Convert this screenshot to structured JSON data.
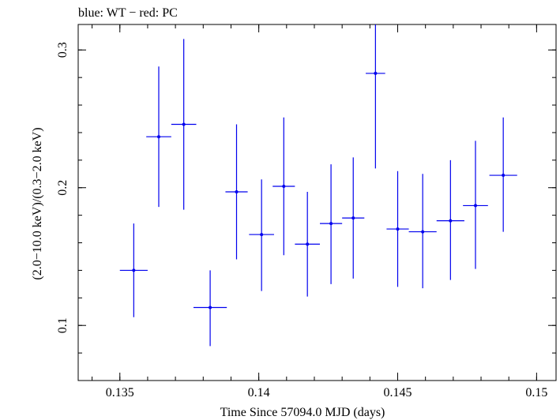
{
  "chart_data": {
    "type": "scatter",
    "title": "blue: WT − red: PC",
    "xlabel": "Time Since 57094.0 MJD (days)",
    "ylabel": "(2.0−10.0 keV)/(0.3−2.0 keV)",
    "xlim": [
      0.1335,
      0.1507
    ],
    "ylim": [
      0.06,
      0.3185
    ],
    "x_ticks": [
      0.135,
      0.14,
      0.145,
      0.15
    ],
    "x_tick_labels": [
      "0.135",
      "0.14",
      "0.145",
      "0.15"
    ],
    "y_ticks": [
      0.1,
      0.2,
      0.3
    ],
    "y_tick_labels": [
      "0.1",
      "0.2",
      "0.3"
    ],
    "grid": false,
    "colors": {
      "WT": "#0000ee",
      "frame": "#000000"
    },
    "series": [
      {
        "name": "WT",
        "points": [
          {
            "x": 0.1355,
            "xerr": 0.0005,
            "y": 0.14,
            "ylo": 0.106,
            "yhi": 0.174
          },
          {
            "x": 0.1364,
            "xerr": 0.00045,
            "y": 0.237,
            "ylo": 0.186,
            "yhi": 0.288
          },
          {
            "x": 0.1373,
            "xerr": 0.00045,
            "y": 0.246,
            "ylo": 0.184,
            "yhi": 0.308
          },
          {
            "x": 0.13825,
            "xerr": 0.0006,
            "y": 0.113,
            "ylo": 0.085,
            "yhi": 0.14
          },
          {
            "x": 0.1392,
            "xerr": 0.0004,
            "y": 0.197,
            "ylo": 0.148,
            "yhi": 0.246
          },
          {
            "x": 0.1401,
            "xerr": 0.00045,
            "y": 0.166,
            "ylo": 0.125,
            "yhi": 0.206
          },
          {
            "x": 0.1409,
            "xerr": 0.0004,
            "y": 0.201,
            "ylo": 0.151,
            "yhi": 0.251
          },
          {
            "x": 0.14175,
            "xerr": 0.00045,
            "y": 0.159,
            "ylo": 0.121,
            "yhi": 0.197
          },
          {
            "x": 0.1426,
            "xerr": 0.0004,
            "y": 0.174,
            "ylo": 0.13,
            "yhi": 0.217
          },
          {
            "x": 0.1434,
            "xerr": 0.0004,
            "y": 0.178,
            "ylo": 0.134,
            "yhi": 0.222
          },
          {
            "x": 0.1442,
            "xerr": 0.00035,
            "y": 0.283,
            "ylo": 0.214,
            "yhi": 0.352
          },
          {
            "x": 0.145,
            "xerr": 0.0004,
            "y": 0.17,
            "ylo": 0.128,
            "yhi": 0.212
          },
          {
            "x": 0.1459,
            "xerr": 0.0005,
            "y": 0.168,
            "ylo": 0.127,
            "yhi": 0.21
          },
          {
            "x": 0.1469,
            "xerr": 0.0005,
            "y": 0.176,
            "ylo": 0.133,
            "yhi": 0.22
          },
          {
            "x": 0.1478,
            "xerr": 0.00045,
            "y": 0.187,
            "ylo": 0.141,
            "yhi": 0.234
          },
          {
            "x": 0.1488,
            "xerr": 0.0005,
            "y": 0.209,
            "ylo": 0.168,
            "yhi": 0.251
          }
        ]
      }
    ]
  }
}
